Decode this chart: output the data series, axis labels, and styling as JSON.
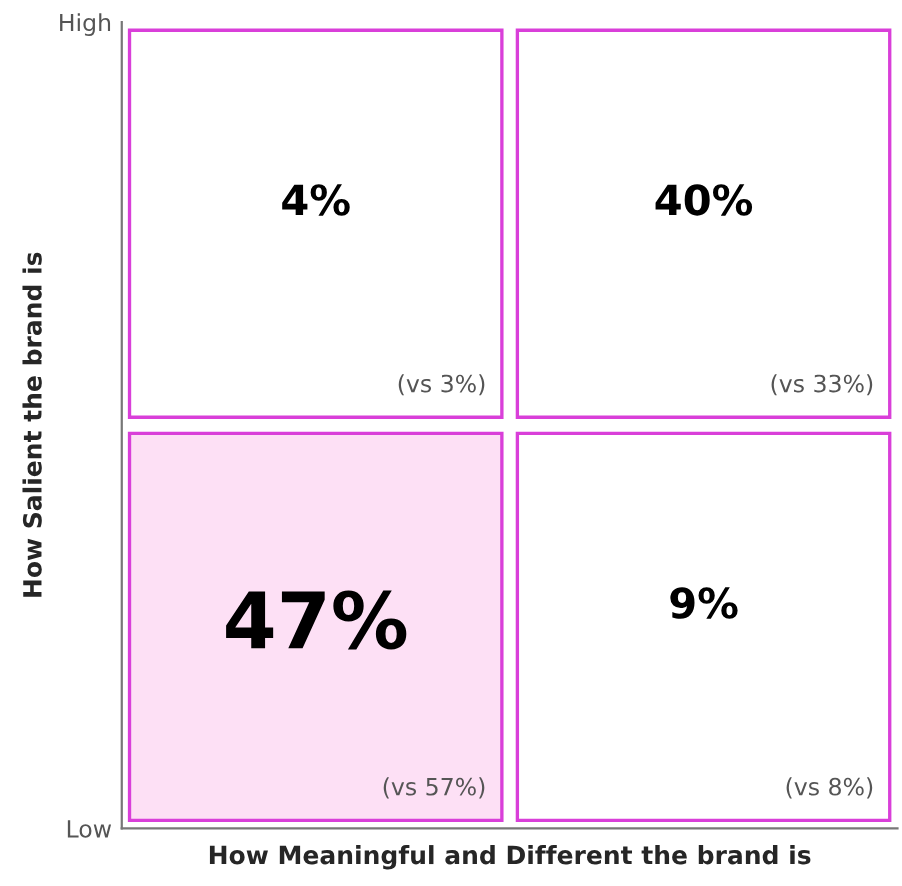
{
  "chart_data": {
    "type": "heatmap",
    "xlabel": "How Meaningful and Different the brand is",
    "ylabel": "How Salient the brand is",
    "categories": [
      null,
      null
    ],
    "y_categories": [
      "High",
      "Low"
    ],
    "cells": [
      [
        4,
        40
      ],
      [
        47,
        9
      ]
    ],
    "cell_labels": [
      [
        "4%",
        "40%"
      ],
      [
        "47%",
        "9%"
      ]
    ],
    "colors": [
      [
        "#ffffff",
        "#ffffff"
      ],
      [
        "#fde0f5",
        "#ffffff"
      ]
    ],
    "annotations": [
      "(vs 3%)",
      "(vs 33%)",
      "(vs 57%)",
      "(vs 8%)"
    ]
  }
}
